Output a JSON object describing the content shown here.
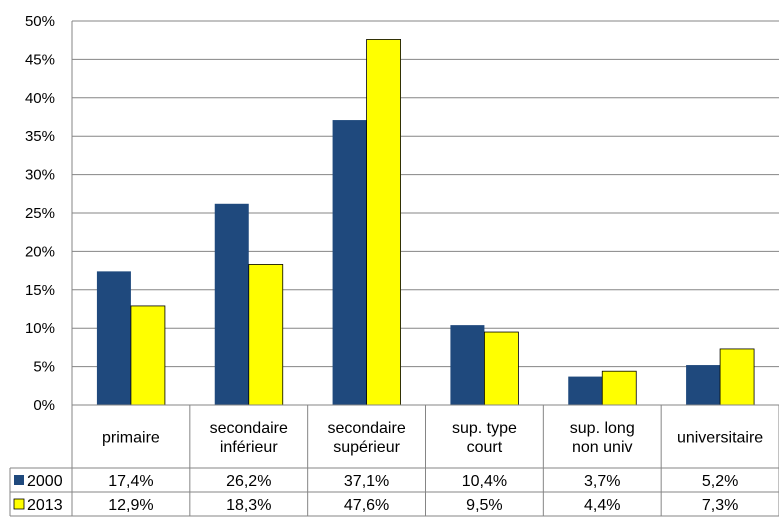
{
  "chart_data": {
    "type": "bar",
    "categories": [
      [
        "primaire"
      ],
      [
        "secondaire",
        "inférieur"
      ],
      [
        "secondaire",
        "supérieur"
      ],
      [
        "sup. type",
        "court"
      ],
      [
        "sup. long",
        "non univ"
      ],
      [
        "universitaire"
      ]
    ],
    "series": [
      {
        "name": "2000",
        "color": "#1F497D",
        "values": [
          17.4,
          26.2,
          37.1,
          10.4,
          3.7,
          5.2
        ],
        "labels": [
          "17,4%",
          "26,2%",
          "37,1%",
          "10,4%",
          "3,7%",
          "5,2%"
        ]
      },
      {
        "name": "2013",
        "color": "#FFFF00",
        "values": [
          12.9,
          18.3,
          47.6,
          9.5,
          4.4,
          7.3
        ],
        "labels": [
          "12,9%",
          "18,3%",
          "47,6%",
          "9,5%",
          "4,4%",
          "7,3%"
        ]
      }
    ],
    "ylim": [
      0,
      50
    ],
    "yticks": [
      "0%",
      "5%",
      "10%",
      "15%",
      "20%",
      "25%",
      "30%",
      "35%",
      "40%",
      "45%",
      "50%"
    ],
    "grid": true,
    "legend": "data-table-left",
    "data_table": true
  }
}
